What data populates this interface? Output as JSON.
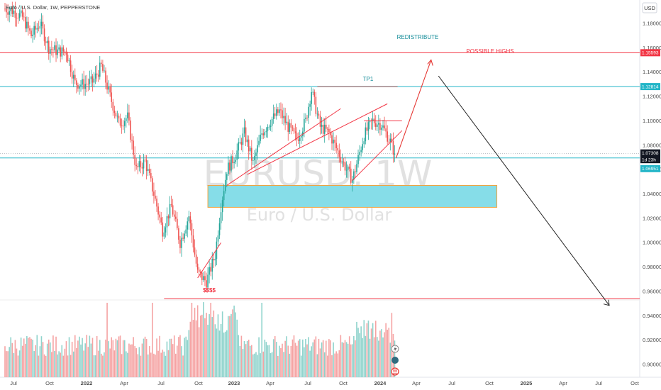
{
  "header": {
    "symbol_title": "Euro / U.S. Dollar, 1W, PEPPERSTONE",
    "currency_button": "USD"
  },
  "watermark": {
    "ticker": "EURUSD, 1W",
    "name": "Euro / U.S. Dollar"
  },
  "colors": {
    "up": "#26a69a",
    "down": "#ef5350",
    "vol_up": "#8fd3cc",
    "vol_down": "#f5a3a3",
    "zone_fill": "#86dde8",
    "zone_border": "#f3a33c",
    "red_line": "#f23645",
    "cyan_line": "#22b5c7",
    "teal_text": "#0f8a97",
    "arrow_red": "#e53935",
    "arrow_black": "#222222"
  },
  "chart_data": {
    "type": "candlestick",
    "price_range": [
      0.895,
      1.195
    ],
    "y_ticks": [
      "1.18000",
      "1.16000",
      "1.14000",
      "1.12000",
      "1.10000",
      "1.08000",
      "1.06000",
      "1.04000",
      "1.02000",
      "1.00000",
      "0.98000",
      "0.96000",
      "0.94000",
      "0.92000",
      "0.90000"
    ],
    "x_ticks": [
      "Jul",
      "Oct",
      "2022",
      "Apr",
      "Jul",
      "Oct",
      "2023",
      "Apr",
      "Jul",
      "Oct",
      "2024",
      "Apr",
      "Jul",
      "Oct",
      "2025",
      "Apr",
      "Jul",
      "Oct"
    ],
    "x_ticks_bold": [
      "2022",
      "2023",
      "2024",
      "2025"
    ],
    "price_tags": {
      "possible_highs": "1.15593",
      "tp1": "1.12814",
      "current": "1.07308",
      "countdown": "1d 23h",
      "support": "1.06951"
    },
    "key_levels": {
      "possible_highs": 1.15593,
      "tp1": 1.12814,
      "current": 1.07308,
      "support": 1.06951,
      "low_liquidity": 0.954
    },
    "demand_zone": {
      "top": 1.047,
      "bottom": 1.029,
      "from_week": 139,
      "to_week": 337
    },
    "anchor_points": [
      [
        0,
        1.192
      ],
      [
        6,
        1.19
      ],
      [
        12,
        1.185
      ],
      [
        18,
        1.17
      ],
      [
        24,
        1.18
      ],
      [
        30,
        1.16
      ],
      [
        36,
        1.157
      ],
      [
        42,
        1.157
      ],
      [
        48,
        1.131
      ],
      [
        54,
        1.13
      ],
      [
        60,
        1.132
      ],
      [
        66,
        1.145
      ],
      [
        72,
        1.12
      ],
      [
        78,
        1.098
      ],
      [
        84,
        1.103
      ],
      [
        90,
        1.06
      ],
      [
        96,
        1.067
      ],
      [
        102,
        1.04
      ],
      [
        108,
        1.01
      ],
      [
        114,
        1.03
      ],
      [
        120,
        1.0
      ],
      [
        126,
        1.022
      ],
      [
        132,
        0.975
      ],
      [
        138,
        0.968
      ],
      [
        144,
        0.99
      ],
      [
        148,
        1.03
      ],
      [
        152,
        1.06
      ],
      [
        158,
        1.072
      ],
      [
        164,
        1.09
      ],
      [
        170,
        1.065
      ],
      [
        176,
        1.09
      ],
      [
        182,
        1.1
      ],
      [
        188,
        1.108
      ],
      [
        194,
        1.095
      ],
      [
        200,
        1.085
      ],
      [
        206,
        1.1
      ],
      [
        210,
        1.125
      ],
      [
        216,
        1.095
      ],
      [
        222,
        1.09
      ],
      [
        228,
        1.075
      ],
      [
        234,
        1.06
      ],
      [
        238,
        1.052
      ],
      [
        240,
        1.06
      ],
      [
        246,
        1.088
      ],
      [
        252,
        1.1
      ],
      [
        258,
        1.097
      ],
      [
        264,
        1.083
      ],
      [
        267,
        1.073
      ]
    ],
    "volume_range_max": 11,
    "annotations": {
      "redistribute": "REDISTRIBUTE",
      "possible_highs": "POSSIBLE HIGHS",
      "tp1": "TP1",
      "liquidity": "$$$$"
    },
    "projection": {
      "start": [
        267,
        1.073
      ],
      "red_peak": [
        290,
        1.15
      ],
      "black_start": [
        297,
        1.145
      ],
      "black_end": [
        414,
        0.9485
      ]
    }
  },
  "side_icons": [
    "lightning-icon",
    "circle-icon",
    "flag-icon"
  ]
}
